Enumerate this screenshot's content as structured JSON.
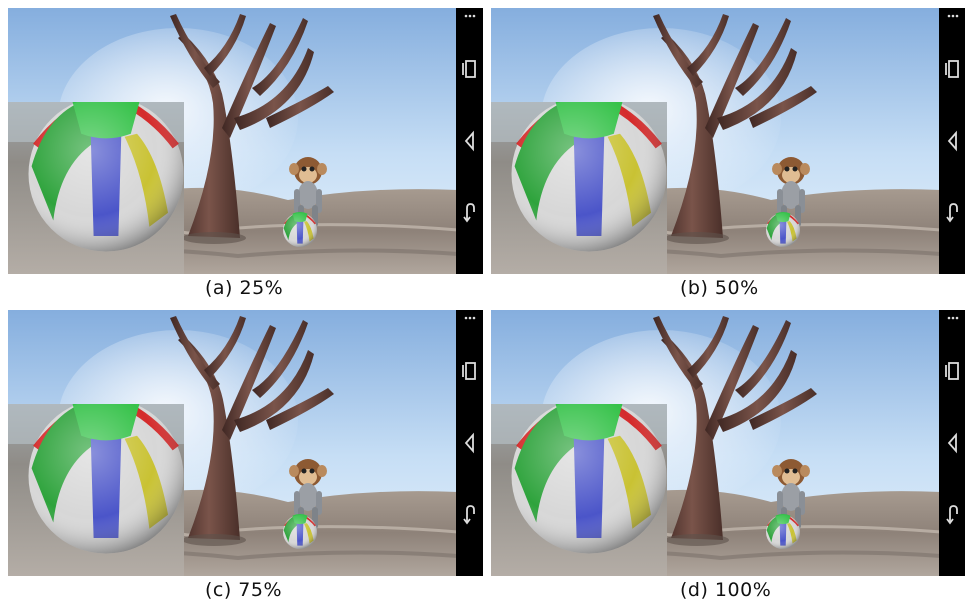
{
  "panels": [
    {
      "caption": "(a) 25%"
    },
    {
      "caption": "(b) 50%"
    },
    {
      "caption": "(c) 75%"
    },
    {
      "caption": "(d) 100%"
    }
  ],
  "navbar": {
    "icons": [
      "menu-dots-icon",
      "recent-apps-icon",
      "back-icon",
      "home-icon"
    ]
  },
  "colors": {
    "sky_top": "#8fb4e0",
    "sky_bottom": "#d9ecfa",
    "ground": "#9b8f85",
    "tree": "#5a3a32",
    "navbar": "#000000"
  }
}
